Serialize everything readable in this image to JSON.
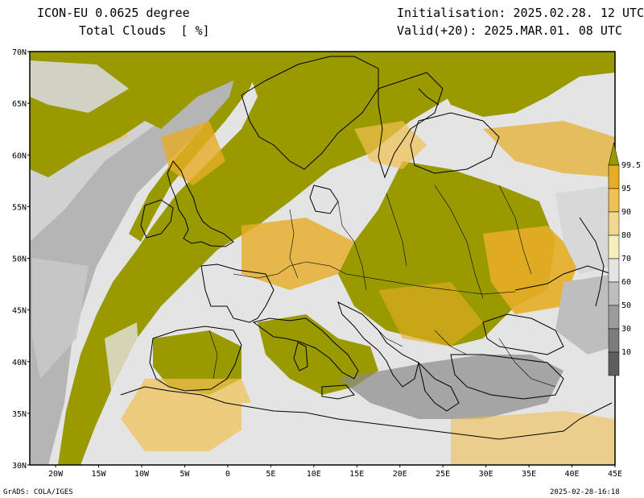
{
  "header": {
    "model": "ICON-EU 0.0625 degree",
    "variable": "Total Clouds  [ %]",
    "initialisation": "Initialisation: 2025.02.28. 12 UTC",
    "valid": "Valid(+20): 2025.MAR.01. 08 UTC"
  },
  "map": {
    "lat_labels": [
      "70N",
      "65N",
      "60N",
      "55N",
      "50N",
      "45N",
      "40N",
      "35N",
      "30N"
    ],
    "lon_labels": [
      "20W",
      "15W",
      "10W",
      "5W",
      "0",
      "5E",
      "10E",
      "15E",
      "20E",
      "25E",
      "30E",
      "35E",
      "40E",
      "45E"
    ],
    "extent": {
      "lon_min": -23,
      "lon_max": 45,
      "lat_min": 30,
      "lat_max": 70
    }
  },
  "colorbar": {
    "labels": [
      "99.5",
      "95",
      "90",
      "80",
      "70",
      "60",
      "50",
      "30",
      "10"
    ],
    "colors": [
      "#999900",
      "#e6ad26",
      "#f0c050",
      "#f0d890",
      "#f4eeb8",
      "#e4e4e4",
      "#bebebe",
      "#9c9c9c",
      "#7c7c7c",
      "#5e5e5e"
    ]
  },
  "colors": {
    "overcast": "#999900",
    "high": "#e6ad26",
    "mid": "#f0c050",
    "land_clear": "#e4e4e4",
    "low": "#9c9c9c"
  },
  "footer": {
    "left": "GrADS: COLA/IGES",
    "right": "2025-02-28-16:18"
  }
}
